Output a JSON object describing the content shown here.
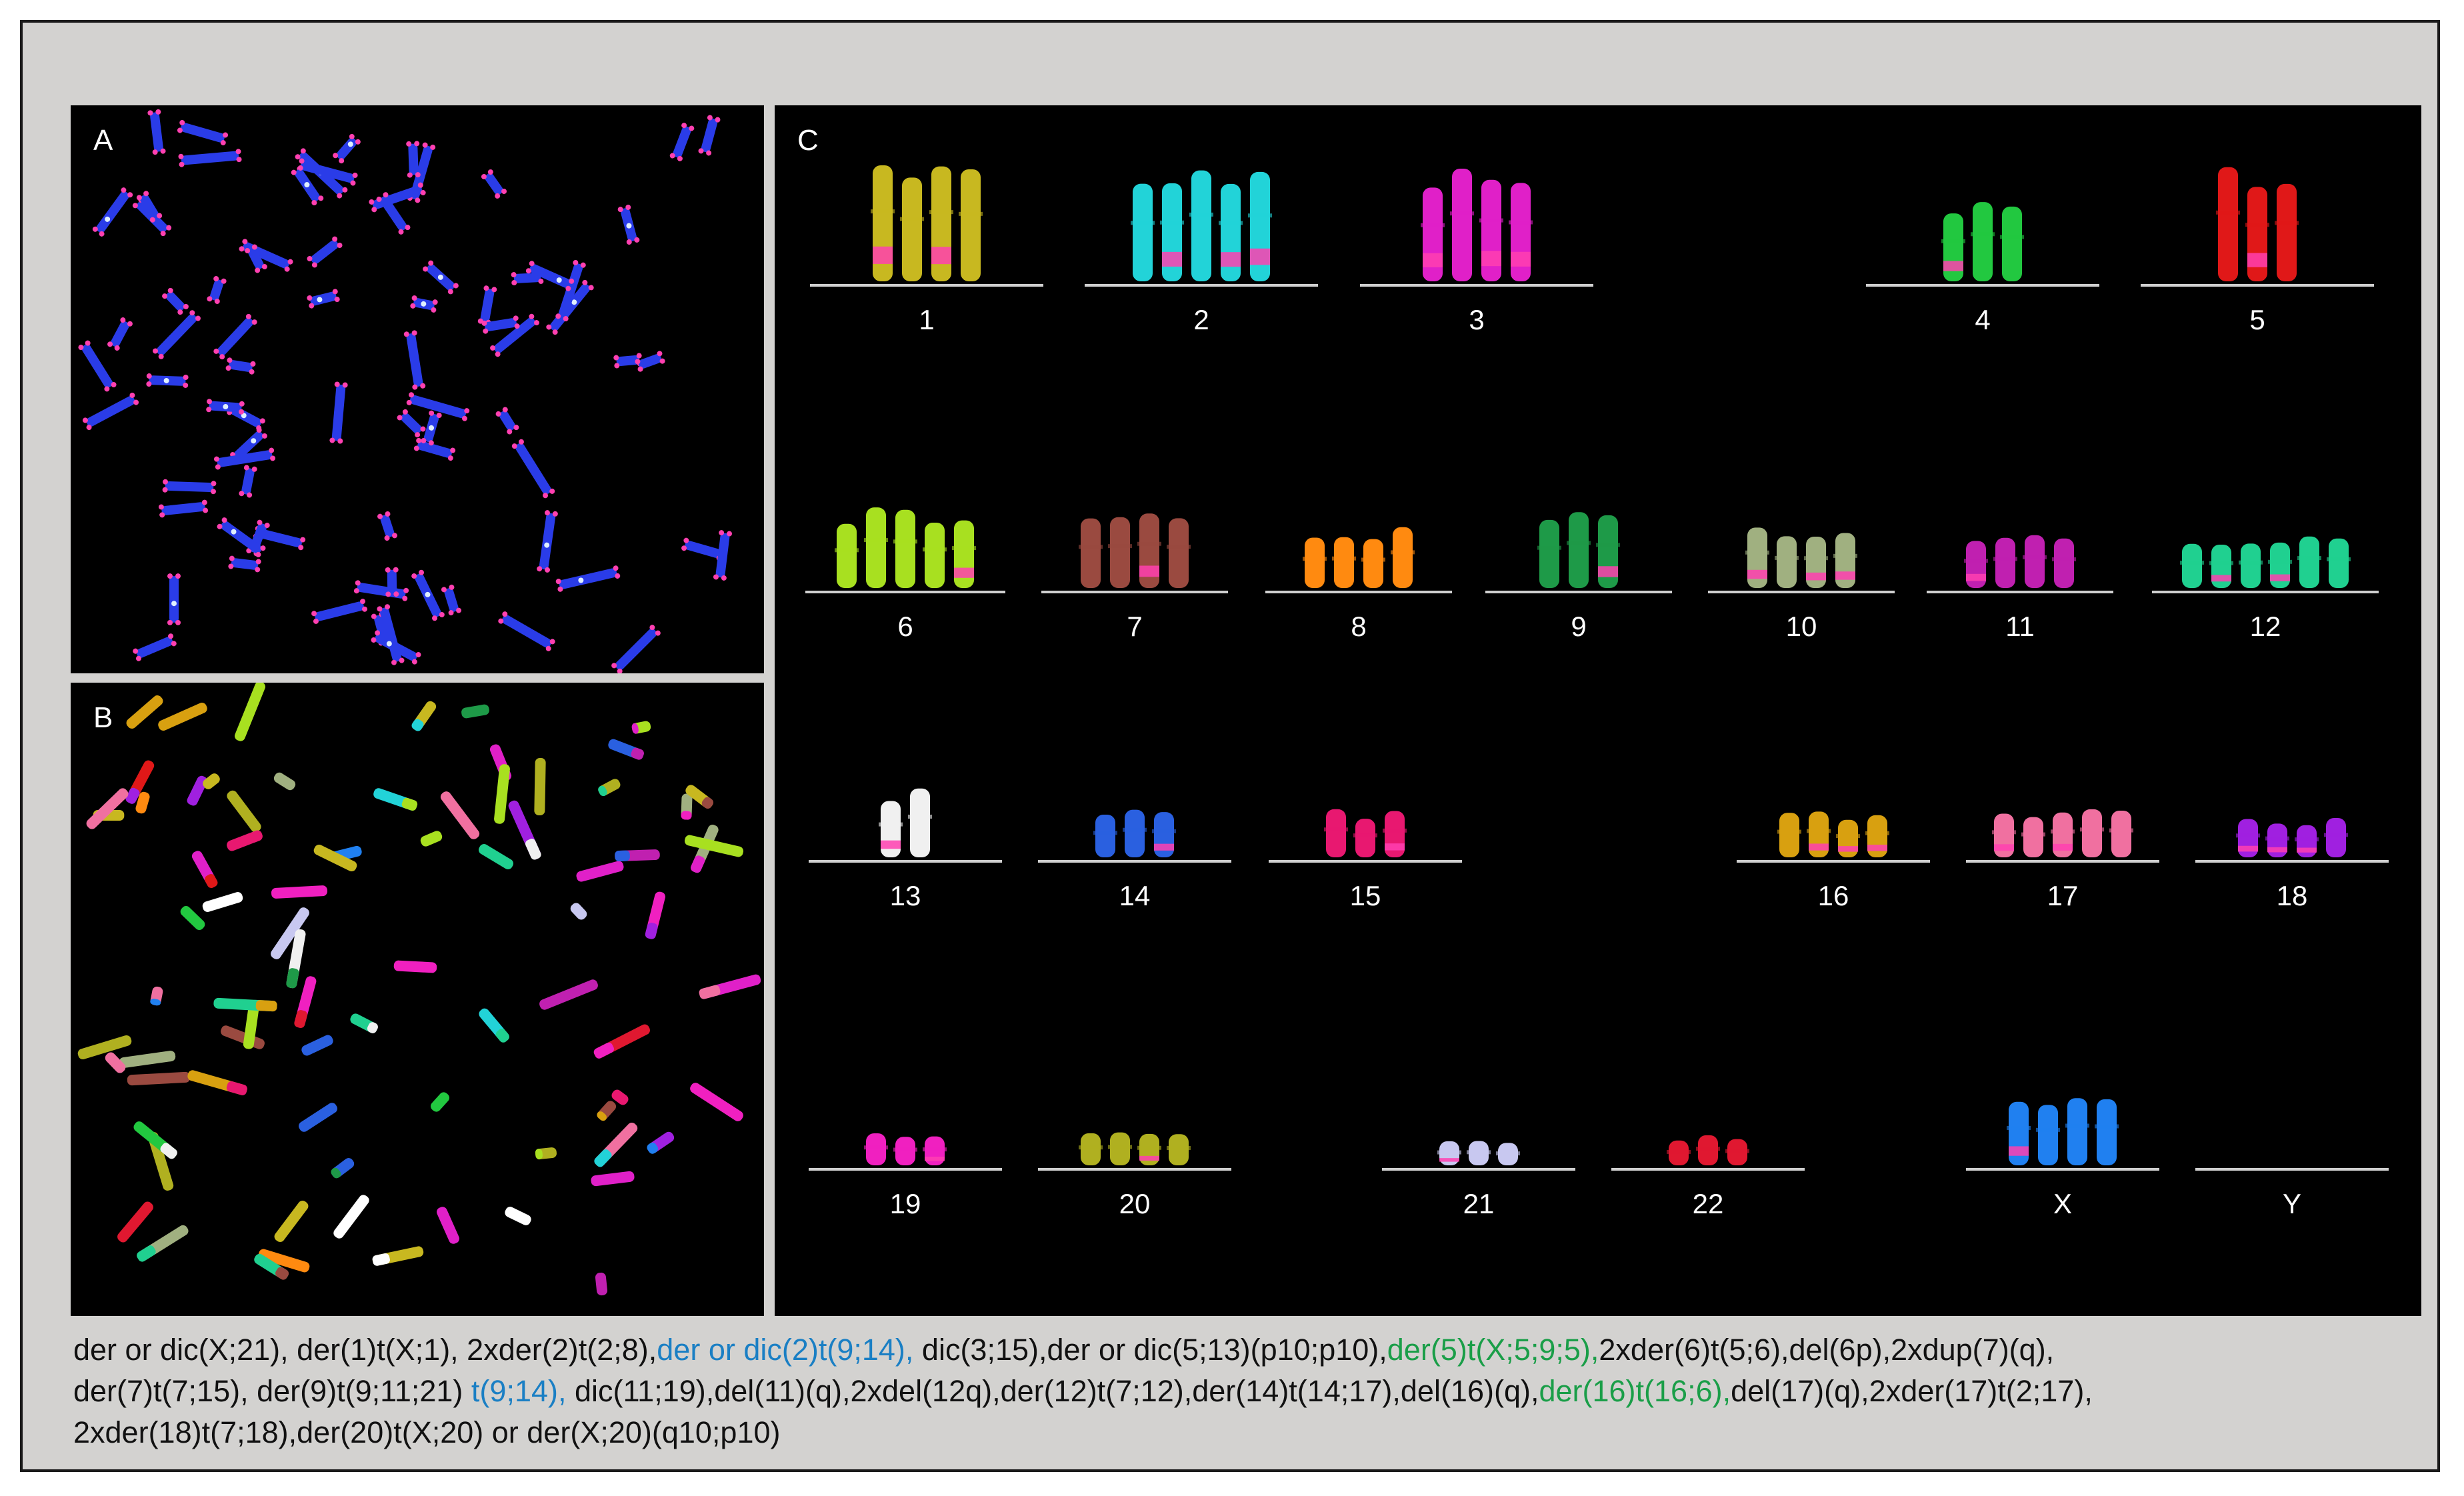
{
  "panels": {
    "a": {
      "letter": "A"
    },
    "b": {
      "letter": "B"
    },
    "c": {
      "letter": "C"
    }
  },
  "karyotype": {
    "labels": [
      "1",
      "2",
      "3",
      "4",
      "5",
      "6",
      "7",
      "8",
      "9",
      "10",
      "11",
      "12",
      "13",
      "14",
      "15",
      "16",
      "17",
      "18",
      "19",
      "20",
      "21",
      "22",
      "X",
      "Y"
    ],
    "colors": {
      "1": "#c8b820",
      "2": "#22d3d8",
      "3": "#e020c8",
      "4": "#22c840",
      "5": "#e01818",
      "6": "#a8e020",
      "7": "#9a4a40",
      "8": "#ff8a10",
      "9": "#1e9a48",
      "10": "#a0b080",
      "11": "#c020b0",
      "12": "#20d090",
      "13": "#f0f0f0",
      "14": "#2a60e0",
      "15": "#e81870",
      "16": "#d8a010",
      "17": "#f070a0",
      "18": "#a020e0",
      "19": "#f020c0",
      "20": "#b0b020",
      "21": "#c8c8f0",
      "22": "#e01830",
      "X": "#2080f0",
      "Y": "#ffffff"
    }
  },
  "caption": {
    "segments": [
      {
        "text": "der or dic(X;21), der(1)t(X;1), 2xder(2)t(2;8),",
        "color": "#111111"
      },
      {
        "text": "der or dic(2)t(9;14),",
        "color": "#1a7fc4"
      },
      {
        "text": " dic(3;15),der or dic(5;13)(p10;p10),",
        "color": "#111111"
      },
      {
        "text": "der(5)t(X;5;9;5),",
        "color": "#1a9e48"
      },
      {
        "text": "2xder(6)t(5;6),del(6p),2xdup(7)(q),",
        "color": "#111111"
      },
      {
        "text": "der(7)t(7;15), der(9)t(9;11;21)",
        "color": "#111111"
      },
      {
        "text": " t(9;14),",
        "color": "#1a7fc4"
      },
      {
        "text": " dic(11;19),del(11)(q),2xdel(12q),der(12)t(7;12),der(14)t(14;17),del(16)(q),",
        "color": "#111111"
      },
      {
        "text": "der(16)t(16;6),",
        "color": "#1a9e48"
      },
      {
        "text": "del(17)(q),2xder(17)t(2;17),",
        "color": "#111111"
      },
      {
        "text": "2xder(18)t(7;18),der(20)t(X;20) or der(X;20)(q10;p10)",
        "color": "#111111"
      }
    ]
  }
}
